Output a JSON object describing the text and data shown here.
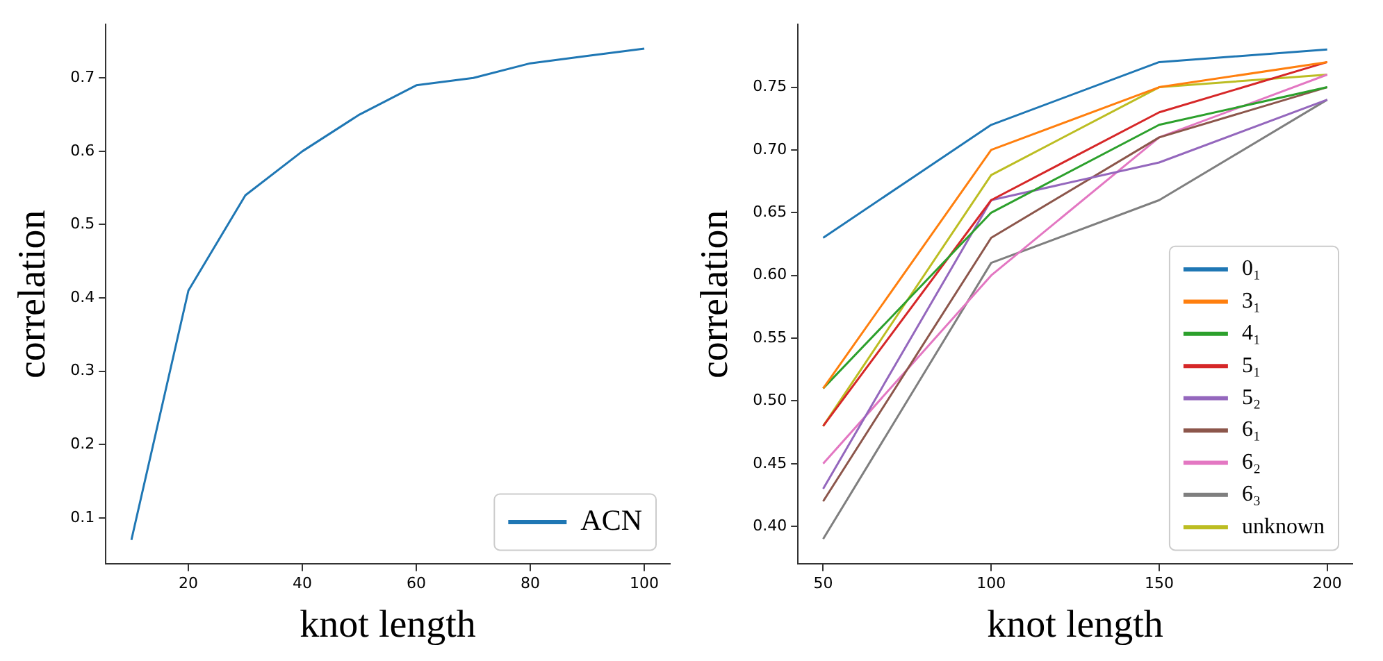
{
  "chart_data": [
    {
      "type": "line",
      "xlabel": "knot length",
      "ylabel": "correlation",
      "x": [
        10,
        20,
        30,
        40,
        50,
        60,
        70,
        80,
        90,
        100
      ],
      "series": [
        {
          "name": "ACN",
          "color": "#1f77b4",
          "values": [
            0.07,
            0.41,
            0.54,
            0.6,
            0.65,
            0.69,
            0.7,
            0.72,
            0.73,
            0.74
          ]
        }
      ],
      "xlim": [
        5.5,
        104.5
      ],
      "xticks": [
        20,
        40,
        60,
        80,
        100
      ],
      "ylim": [
        0.037,
        0.773
      ],
      "yticks": [
        0.1,
        0.2,
        0.3,
        0.4,
        0.5,
        0.6,
        0.7
      ],
      "grid": false,
      "legend": "bottom right",
      "marker": "none",
      "line_style": "solid"
    },
    {
      "type": "line",
      "xlabel": "knot length",
      "ylabel": "correlation",
      "x": [
        50,
        100,
        150,
        200
      ],
      "series": [
        {
          "name": "0₁",
          "color": "#1f77b4",
          "values": [
            0.63,
            0.72,
            0.77,
            0.78
          ]
        },
        {
          "name": "3₁",
          "color": "#ff7f0e",
          "values": [
            0.51,
            0.7,
            0.75,
            0.77
          ]
        },
        {
          "name": "4₁",
          "color": "#2ca02c",
          "values": [
            0.51,
            0.65,
            0.72,
            0.75
          ]
        },
        {
          "name": "5₁",
          "color": "#d62728",
          "values": [
            0.48,
            0.66,
            0.73,
            0.77
          ]
        },
        {
          "name": "5₂",
          "color": "#9467bd",
          "values": [
            0.43,
            0.66,
            0.69,
            0.74
          ]
        },
        {
          "name": "6₁",
          "color": "#8c564b",
          "values": [
            0.42,
            0.63,
            0.71,
            0.75
          ]
        },
        {
          "name": "6₂",
          "color": "#e377c2",
          "values": [
            0.45,
            0.6,
            0.71,
            0.76
          ]
        },
        {
          "name": "6₃",
          "color": "#7f7f7f",
          "values": [
            0.39,
            0.61,
            0.66,
            0.74
          ]
        },
        {
          "name": "unknown",
          "color": "#bcbd22",
          "values": [
            0.48,
            0.68,
            0.75,
            0.76
          ]
        }
      ],
      "xlim": [
        42.5,
        207.5
      ],
      "xticks": [
        50,
        100,
        150,
        200
      ],
      "ylim": [
        0.37,
        0.8
      ],
      "yticks": [
        {
          "value": 0.4,
          "label": "0.40"
        },
        0.45,
        {
          "value": 0.5,
          "label": "0.50"
        },
        0.55,
        {
          "value": 0.6,
          "label": "0.60"
        },
        0.65,
        {
          "value": 0.7,
          "label": "0.70"
        },
        0.75
      ],
      "grid": false,
      "legend": "bottom right",
      "marker": "none",
      "line_style": "solid"
    }
  ]
}
